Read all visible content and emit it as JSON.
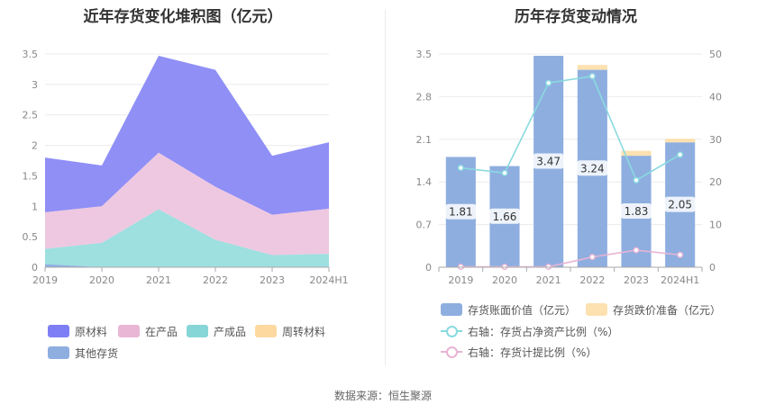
{
  "left_title": "近年存货变化堆积图（亿元）",
  "right_title": "历年存货变动情况",
  "source": "数据来源：恒生聚源",
  "colors": {
    "raw": "#8f8ff6",
    "wip": "#eec8e0",
    "finished": "#9edfe0",
    "turnover": "#fdd9a0",
    "other": "#8eaee0",
    "bar": "#8eaee0",
    "bar_reserve": "#fde1b0",
    "line_net": "#8adadf",
    "line_provision": "#e8b4d4"
  },
  "left_legend": [
    {
      "label": "原材料",
      "color": "#7f7ff5"
    },
    {
      "label": "在产品",
      "color": "#e9b6d6"
    },
    {
      "label": "产成品",
      "color": "#86d6d8"
    },
    {
      "label": "周转材料",
      "color": "#fdd9a0"
    },
    {
      "label": "其他存货",
      "color": "#8eaee0"
    }
  ],
  "right_legend": {
    "bar": "存货账面价值（亿元）",
    "reserve": "存货跌价准备（亿元）",
    "net_ratio": "右轴：存货占净资产比例（%）",
    "provision_ratio": "右轴：存货计提比例（%）"
  },
  "chart_data": [
    {
      "type": "area",
      "title": "近年存货变化堆积图（亿元）",
      "stacked": true,
      "categories": [
        "2019",
        "2020",
        "2021",
        "2022",
        "2023",
        "2024H1"
      ],
      "ylim": [
        0,
        3.5
      ],
      "yticks": [
        "0",
        "0.5",
        "1",
        "1.5",
        "2",
        "2.5",
        "3",
        "3.5"
      ],
      "grid": true,
      "legend_position": "bottom",
      "series": [
        {
          "name": "其他存货",
          "values": [
            0.05,
            0.0,
            0.0,
            0.0,
            0.0,
            0.0
          ]
        },
        {
          "name": "周转材料",
          "values": [
            0.0,
            0.0,
            0.0,
            0.0,
            0.0,
            0.0
          ]
        },
        {
          "name": "产成品",
          "values": [
            0.25,
            0.4,
            0.95,
            0.45,
            0.2,
            0.22
          ]
        },
        {
          "name": "在产品",
          "values": [
            0.6,
            0.6,
            0.93,
            0.87,
            0.66,
            0.74
          ]
        },
        {
          "name": "原材料",
          "values": [
            0.9,
            0.67,
            1.59,
            1.92,
            0.97,
            1.09
          ]
        }
      ]
    },
    {
      "type": "bar",
      "title": "历年存货变动情况",
      "categories": [
        "2019",
        "2020",
        "2021",
        "2022",
        "2023",
        "2024H1"
      ],
      "ylim": [
        0,
        3.5
      ],
      "yticks": [
        "0",
        "0.7",
        "1.4",
        "2.1",
        "2.8",
        "3.5"
      ],
      "y2lim": [
        0,
        50
      ],
      "y2ticks": [
        "0",
        "10",
        "20",
        "30",
        "40",
        "50"
      ],
      "grid": true,
      "legend_position": "bottom",
      "series": [
        {
          "name": "存货账面价值（亿元）",
          "values": [
            1.81,
            1.66,
            3.47,
            3.24,
            1.83,
            2.05
          ],
          "data_labels": [
            "1.81",
            "1.66",
            "3.47",
            "3.24",
            "1.83",
            "2.05"
          ]
        },
        {
          "name": "存货跌价准备（亿元）",
          "values": [
            0.0,
            0.0,
            0.0,
            0.08,
            0.08,
            0.06
          ]
        },
        {
          "name": "右轴：存货占净资产比例（%）",
          "axis": "right",
          "values": [
            23.3,
            22.1,
            43.2,
            44.8,
            20.4,
            26.4
          ]
        },
        {
          "name": "右轴：存货计提比例（%）",
          "axis": "right",
          "values": [
            0.1,
            0.1,
            0.1,
            2.4,
            4.0,
            2.9
          ]
        }
      ]
    }
  ]
}
